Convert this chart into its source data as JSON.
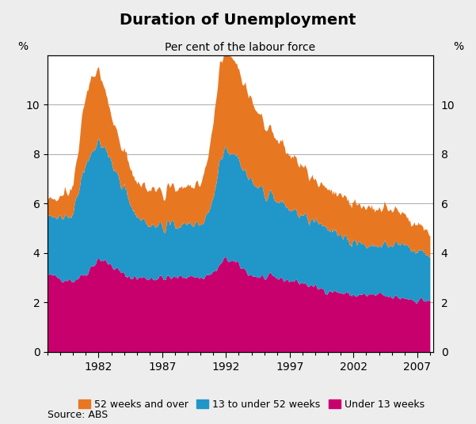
{
  "title": "Duration of Unemployment",
  "subtitle": "Per cent of the labour force",
  "source": "Source: ABS",
  "color_52over": "#E87722",
  "color_13to52": "#2196C8",
  "color_under13": "#C8006E",
  "bg_color": "#EDEDED",
  "plot_bg": "#F5F5F5",
  "ylim": [
    0,
    12
  ],
  "yticks": [
    0,
    2,
    4,
    6,
    8,
    10
  ],
  "legend_labels": [
    "52 weeks and over",
    "13 to under 52 weeks",
    "Under 13 weeks"
  ],
  "x_start_year": 1978.0,
  "x_end_year": 2008.25,
  "xtick_years": [
    1982,
    1987,
    1992,
    1997,
    2002,
    2007
  ]
}
